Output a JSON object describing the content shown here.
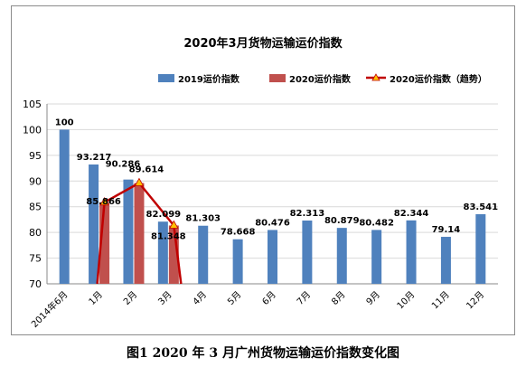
{
  "caption": "图1 2020 年 3 月广州货物运输运价指数变化图",
  "chart_data": {
    "type": "bar",
    "title": "2020年3月货物运输运价指数",
    "categories": [
      "2014年6月",
      "1月",
      "2月",
      "3月",
      "4月",
      "5月",
      "6月",
      "7月",
      "8月",
      "9月",
      "10月",
      "11月",
      "12月"
    ],
    "series": [
      {
        "name": "2019运价指数",
        "type": "bar",
        "color": "#4f81bd",
        "values": [
          100,
          93.217,
          90.286,
          82.099,
          81.303,
          78.668,
          80.476,
          82.313,
          80.879,
          80.482,
          82.344,
          79.14,
          83.541
        ],
        "labels": [
          "100",
          "93.217",
          "90.286",
          "82.099",
          "81.303",
          "78.668",
          "80.476",
          "82.313",
          "80.879",
          "80.482",
          "82.344",
          "79.14",
          "83.541"
        ]
      },
      {
        "name": "2020运价指数",
        "type": "bar",
        "color": "#c0504d",
        "values": [
          null,
          85.866,
          89.614,
          81.348,
          null,
          null,
          null,
          null,
          null,
          null,
          null,
          null,
          null
        ],
        "labels": [
          null,
          "85.866",
          "89.614",
          "81.348",
          null,
          null,
          null,
          null,
          null,
          null,
          null,
          null,
          null
        ]
      },
      {
        "name": "2020运价指数（趋势）",
        "type": "line",
        "color": "#c00000",
        "marker_color": "#ffc000",
        "values": [
          null,
          85.866,
          89.614,
          81.348,
          null,
          null,
          null,
          null,
          null,
          null,
          null,
          null,
          null
        ]
      }
    ],
    "ylim": [
      70,
      105
    ],
    "yticks": [
      70,
      75,
      80,
      85,
      90,
      95,
      100,
      105
    ],
    "grid": true,
    "legend_position": "top"
  }
}
